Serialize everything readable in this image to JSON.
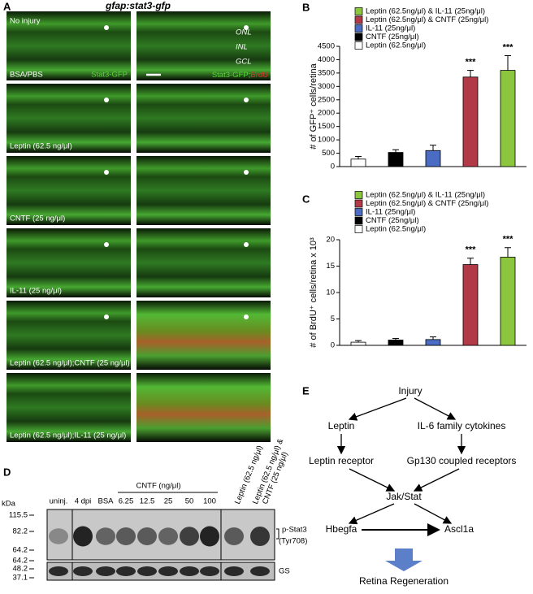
{
  "panel_labels": [
    "A",
    "B",
    "C",
    "D",
    "E"
  ],
  "panel_a": {
    "title": "gfap:stat3-gfp",
    "top_left": "No injury",
    "control": "BSA/PBS",
    "green_channel": "Stat3-GFP",
    "merge_green": "Stat3-GFP;",
    "merge_red": "BrdU",
    "layers": [
      "ONL",
      "INL",
      "GCL"
    ],
    "conditions": [
      "Leptin (62.5 ng/μl)",
      "CNTF (25 ng/μl)",
      "IL-11 (25 ng/μl)",
      "Leptin (62.5 ng/μl);CNTF (25 ng/μl)",
      "Leptin (62.5 ng/μl);IL-11 (25 ng/μl)"
    ]
  },
  "chart_data": [
    {
      "type": "bar",
      "y_label": "# of GFP⁺ cells/retina",
      "ylim": [
        0,
        4500
      ],
      "yticks": [
        0,
        500,
        1000,
        1500,
        2000,
        2500,
        3000,
        3500,
        4000,
        4500
      ],
      "series": [
        {
          "name": "Leptin (62.5ng/μl)",
          "color": "#ffffff",
          "values": [
            280
          ],
          "errors": [
            100
          ]
        },
        {
          "name": "CNTF (25ng/μl)",
          "color": "#000000",
          "values": [
            530
          ],
          "errors": [
            100
          ]
        },
        {
          "name": "IL-11 (25ng/μl)",
          "color": "#4a6cc2",
          "values": [
            600
          ],
          "errors": [
            200
          ]
        },
        {
          "name": "Leptin (62.5ng/μl) & CNTF (25ng/μl)",
          "color": "#b23a48",
          "values": [
            3350
          ],
          "errors": [
            250
          ],
          "annotation": "***"
        },
        {
          "name": "Leptin (62.5ng/μl) & IL-11 (25ng/μl)",
          "color": "#8cc63f",
          "values": [
            3600
          ],
          "errors": [
            550
          ],
          "annotation": "***"
        }
      ]
    },
    {
      "type": "bar",
      "y_label": "# of BrdU⁺ cells/retina x 10³",
      "ylim": [
        0,
        20
      ],
      "yticks": [
        0,
        5,
        10,
        15,
        20
      ],
      "series": [
        {
          "name": "Leptin (62.5ng/μl)",
          "color": "#ffffff",
          "values": [
            0.6
          ],
          "errors": [
            0.3
          ]
        },
        {
          "name": "CNTF (25ng/μl)",
          "color": "#000000",
          "values": [
            1.0
          ],
          "errors": [
            0.3
          ]
        },
        {
          "name": "IL-11 (25ng/μl)",
          "color": "#4a6cc2",
          "values": [
            1.1
          ],
          "errors": [
            0.5
          ]
        },
        {
          "name": "Leptin (62.5ng/μl) & CNTF (25ng/μl)",
          "color": "#b23a48",
          "values": [
            15.3
          ],
          "errors": [
            1.2
          ],
          "annotation": "***"
        },
        {
          "name": "Leptin (62.5ng/μl) & IL-11 (25ng/μl)",
          "color": "#8cc63f",
          "values": [
            16.7
          ],
          "errors": [
            1.8
          ],
          "annotation": "***"
        }
      ]
    }
  ],
  "panel_d": {
    "kda": "kDa",
    "markers_top": [
      "115.5",
      "82.2",
      "64.2"
    ],
    "markers_bottom": [
      "64.2",
      "48.2",
      "37.1"
    ],
    "lanes": [
      "uninj.",
      "4 dpi",
      "BSA",
      "6.25",
      "12.5",
      "25",
      "50",
      "100"
    ],
    "cntf_header": "CNTF (ng/μl)",
    "rotated": [
      "Leptin (62.5 ng/μl)",
      "Leptin (62.5 ng/μl) &",
      "CNTF (25 ng/μl)"
    ],
    "band_labels": [
      "p-Stat3",
      "(Tyr708)",
      "GS"
    ]
  },
  "panel_e": {
    "nodes": [
      "Injury",
      "Leptin",
      "IL-6 family cytokines",
      "Leptin receptor",
      "Gp130 coupled receptors",
      "Jak/Stat",
      "Hbegfa",
      "Ascl1a",
      "Retina Regeneration"
    ]
  }
}
